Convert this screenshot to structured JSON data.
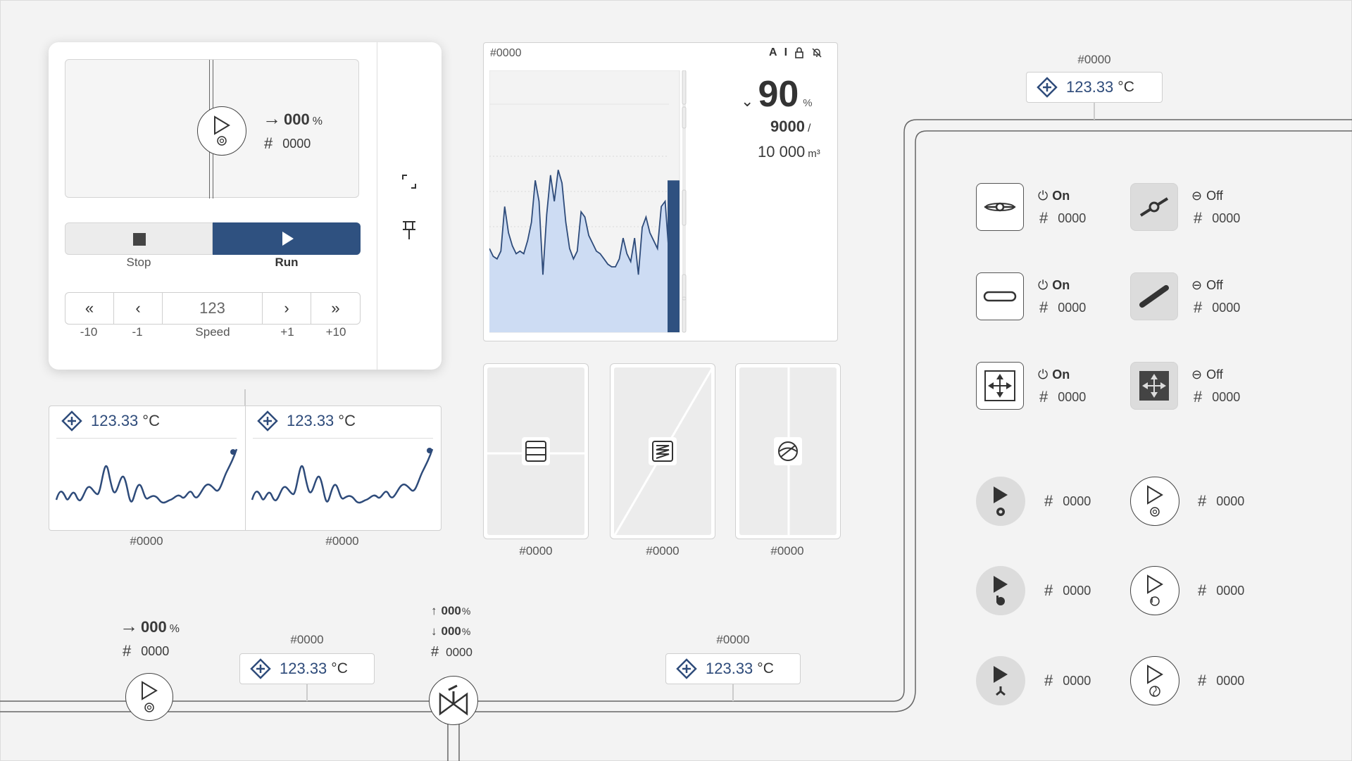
{
  "colors": {
    "accent": "#2f5180",
    "fill": "#cddcf3",
    "line": "#2e4b7a"
  },
  "pump_card": {
    "flow_pct": "000",
    "pct_unit": "%",
    "id_value": "0000",
    "stop_label": "Stop",
    "run_label": "Run",
    "stepper": {
      "value": "123",
      "minus10": "-10",
      "minus1": "-1",
      "label": "Speed",
      "plus1": "+1",
      "plus10": "+10"
    },
    "icons": [
      "expand-icon",
      "pin-icon"
    ]
  },
  "trend_cards": [
    {
      "value": "123.33",
      "unit": "°C",
      "tag": "#0000"
    },
    {
      "value": "123.33",
      "unit": "°C",
      "tag": "#0000"
    }
  ],
  "tank_chart": {
    "tag": "#0000",
    "mode_icons": [
      "A",
      "I",
      "lock",
      "bell-off"
    ],
    "level": "90",
    "level_unit": "%",
    "amount": "9000",
    "slash": "/",
    "capacity": "10 000",
    "capacity_unit": "m³"
  },
  "chart_data": {
    "type": "area",
    "series": [
      {
        "values": [
          32,
          29,
          28,
          31,
          48,
          38,
          33,
          30,
          31,
          30,
          35,
          42,
          58,
          50,
          22,
          45,
          60,
          50,
          62,
          57,
          42,
          32,
          28,
          31,
          46,
          44,
          37,
          34,
          31,
          30,
          28,
          26,
          25,
          25,
          28,
          36,
          30,
          27,
          36,
          22,
          40,
          44,
          38,
          35,
          32,
          48,
          50,
          30
        ]
      }
    ],
    "ylim": [
      0,
      100
    ],
    "level_pct": 58
  },
  "valves": [
    {
      "tag": "#0000",
      "icon": "cooler-icon"
    },
    {
      "tag": "#0000",
      "icon": "heater-icon"
    },
    {
      "tag": "#0000",
      "icon": "valve-icon"
    }
  ],
  "top_sensor": {
    "tag": "#0000",
    "value": "123.33",
    "unit": "°C"
  },
  "bottom_pump": {
    "flow_pct": "000",
    "pct_unit": "%",
    "id_value": "0000"
  },
  "bottom_sensor1": {
    "tag": "#0000",
    "value": "123.33",
    "unit": "°C"
  },
  "bottom_sensor2": {
    "tag": "#0000",
    "value": "123.33",
    "unit": "°C"
  },
  "mixer": {
    "up_pct": "000",
    "down_pct": "000",
    "pct_unit": "%",
    "id_value": "0000"
  },
  "controls": [
    {
      "state": "On",
      "id": "0000"
    },
    {
      "state": "Off",
      "id": "0000"
    },
    {
      "state": "On",
      "id": "0000"
    },
    {
      "state": "Off",
      "id": "0000"
    },
    {
      "state": "On",
      "id": "0000"
    },
    {
      "state": "Off",
      "id": "0000"
    }
  ],
  "pumps": [
    {
      "id": "0000"
    },
    {
      "id": "0000"
    },
    {
      "id": "0000"
    },
    {
      "id": "0000"
    },
    {
      "id": "0000"
    },
    {
      "id": "0000"
    }
  ],
  "hash": "#"
}
